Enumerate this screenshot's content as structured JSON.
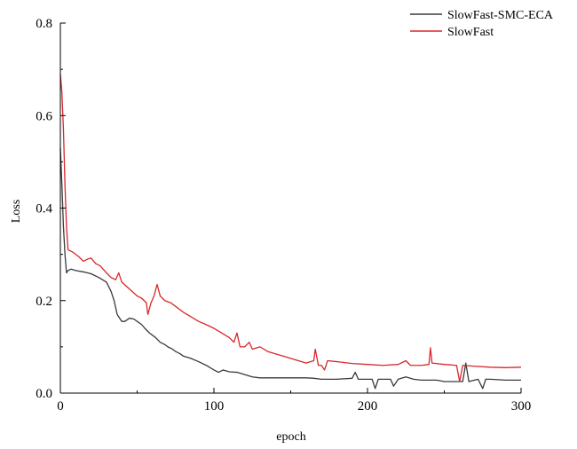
{
  "chart_data": {
    "type": "line",
    "xlabel": "epoch",
    "ylabel": "Loss",
    "xlim": [
      0,
      300
    ],
    "ylim": [
      0,
      0.8
    ],
    "xticks": [
      0,
      100,
      200,
      300
    ],
    "yticks": [
      0.0,
      0.2,
      0.4,
      0.6,
      0.8
    ],
    "ytick_labels": [
      "0.0",
      "0.2",
      "0.4",
      "0.6",
      "0.8"
    ],
    "grid": false,
    "legend_position": "top-right",
    "series": [
      {
        "name": "SlowFast-SMC-ECA",
        "color": "#3a3a3a",
        "points": [
          [
            0,
            0.53
          ],
          [
            1,
            0.45
          ],
          [
            2,
            0.36
          ],
          [
            3,
            0.3
          ],
          [
            4,
            0.26
          ],
          [
            5,
            0.265
          ],
          [
            7,
            0.268
          ],
          [
            10,
            0.265
          ],
          [
            15,
            0.262
          ],
          [
            20,
            0.258
          ],
          [
            25,
            0.25
          ],
          [
            30,
            0.24
          ],
          [
            33,
            0.22
          ],
          [
            35,
            0.2
          ],
          [
            37,
            0.17
          ],
          [
            40,
            0.155
          ],
          [
            42,
            0.155
          ],
          [
            45,
            0.162
          ],
          [
            48,
            0.16
          ],
          [
            50,
            0.155
          ],
          [
            53,
            0.148
          ],
          [
            55,
            0.14
          ],
          [
            58,
            0.13
          ],
          [
            62,
            0.12
          ],
          [
            65,
            0.11
          ],
          [
            68,
            0.105
          ],
          [
            70,
            0.1
          ],
          [
            73,
            0.095
          ],
          [
            75,
            0.09
          ],
          [
            78,
            0.085
          ],
          [
            80,
            0.08
          ],
          [
            85,
            0.075
          ],
          [
            90,
            0.068
          ],
          [
            95,
            0.06
          ],
          [
            100,
            0.05
          ],
          [
            103,
            0.045
          ],
          [
            106,
            0.05
          ],
          [
            110,
            0.046
          ],
          [
            115,
            0.045
          ],
          [
            120,
            0.04
          ],
          [
            125,
            0.035
          ],
          [
            130,
            0.033
          ],
          [
            140,
            0.033
          ],
          [
            150,
            0.033
          ],
          [
            160,
            0.033
          ],
          [
            165,
            0.032
          ],
          [
            170,
            0.03
          ],
          [
            172,
            0.03
          ],
          [
            180,
            0.03
          ],
          [
            190,
            0.032
          ],
          [
            192,
            0.045
          ],
          [
            194,
            0.03
          ],
          [
            200,
            0.03
          ],
          [
            203,
            0.03
          ],
          [
            205,
            0.01
          ],
          [
            207,
            0.03
          ],
          [
            215,
            0.03
          ],
          [
            217,
            0.015
          ],
          [
            220,
            0.03
          ],
          [
            225,
            0.035
          ],
          [
            230,
            0.03
          ],
          [
            235,
            0.028
          ],
          [
            240,
            0.028
          ],
          [
            245,
            0.028
          ],
          [
            250,
            0.025
          ],
          [
            255,
            0.025
          ],
          [
            262,
            0.025
          ],
          [
            264,
            0.065
          ],
          [
            266,
            0.025
          ],
          [
            272,
            0.03
          ],
          [
            275,
            0.01
          ],
          [
            277,
            0.03
          ],
          [
            280,
            0.03
          ],
          [
            290,
            0.028
          ],
          [
            300,
            0.028
          ]
        ]
      },
      {
        "name": "SlowFast",
        "color": "#d9262b",
        "points": [
          [
            0,
            0.69
          ],
          [
            1,
            0.65
          ],
          [
            2,
            0.57
          ],
          [
            3,
            0.45
          ],
          [
            4,
            0.36
          ],
          [
            5,
            0.31
          ],
          [
            8,
            0.305
          ],
          [
            12,
            0.295
          ],
          [
            15,
            0.285
          ],
          [
            18,
            0.29
          ],
          [
            20,
            0.292
          ],
          [
            23,
            0.28
          ],
          [
            26,
            0.275
          ],
          [
            30,
            0.26
          ],
          [
            33,
            0.25
          ],
          [
            36,
            0.245
          ],
          [
            38,
            0.26
          ],
          [
            40,
            0.24
          ],
          [
            45,
            0.225
          ],
          [
            50,
            0.21
          ],
          [
            53,
            0.205
          ],
          [
            56,
            0.195
          ],
          [
            57,
            0.17
          ],
          [
            59,
            0.195
          ],
          [
            61,
            0.21
          ],
          [
            63,
            0.235
          ],
          [
            65,
            0.21
          ],
          [
            68,
            0.2
          ],
          [
            72,
            0.195
          ],
          [
            76,
            0.185
          ],
          [
            80,
            0.175
          ],
          [
            85,
            0.165
          ],
          [
            90,
            0.155
          ],
          [
            95,
            0.148
          ],
          [
            100,
            0.14
          ],
          [
            105,
            0.13
          ],
          [
            110,
            0.12
          ],
          [
            113,
            0.11
          ],
          [
            115,
            0.13
          ],
          [
            117,
            0.1
          ],
          [
            120,
            0.1
          ],
          [
            123,
            0.11
          ],
          [
            125,
            0.095
          ],
          [
            130,
            0.1
          ],
          [
            135,
            0.09
          ],
          [
            140,
            0.085
          ],
          [
            145,
            0.08
          ],
          [
            150,
            0.075
          ],
          [
            155,
            0.07
          ],
          [
            160,
            0.065
          ],
          [
            165,
            0.07
          ],
          [
            166,
            0.095
          ],
          [
            168,
            0.06
          ],
          [
            170,
            0.06
          ],
          [
            172,
            0.05
          ],
          [
            174,
            0.07
          ],
          [
            180,
            0.068
          ],
          [
            190,
            0.064
          ],
          [
            200,
            0.062
          ],
          [
            210,
            0.06
          ],
          [
            220,
            0.062
          ],
          [
            225,
            0.07
          ],
          [
            228,
            0.06
          ],
          [
            235,
            0.06
          ],
          [
            240,
            0.062
          ],
          [
            241,
            0.098
          ],
          [
            242,
            0.065
          ],
          [
            250,
            0.062
          ],
          [
            258,
            0.06
          ],
          [
            260,
            0.025
          ],
          [
            262,
            0.06
          ],
          [
            270,
            0.058
          ],
          [
            280,
            0.056
          ],
          [
            290,
            0.055
          ],
          [
            300,
            0.056
          ]
        ]
      }
    ]
  }
}
